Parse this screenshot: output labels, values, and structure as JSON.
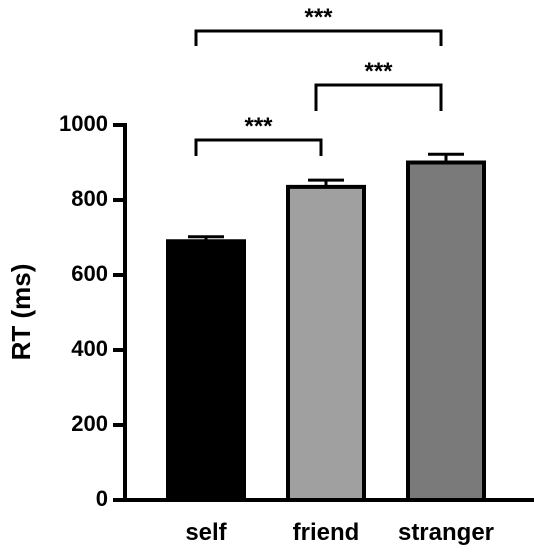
{
  "chart_data": {
    "type": "bar",
    "y_label": "RT (ms)",
    "categories": [
      "self",
      "friend",
      "stranger"
    ],
    "values": [
      690,
      835,
      900
    ],
    "errors": [
      12,
      18,
      22
    ],
    "colors": [
      "#000000",
      "#a0a0a0",
      "#7a7a7a"
    ],
    "ylim": [
      0,
      1000
    ],
    "yticks": [
      0,
      200,
      400,
      600,
      800,
      1000
    ],
    "comparisons": [
      {
        "from": 0,
        "to": 1,
        "label": "***"
      },
      {
        "from": 1,
        "to": 2,
        "label": "***"
      },
      {
        "from": 0,
        "to": 2,
        "label": "***"
      }
    ]
  }
}
